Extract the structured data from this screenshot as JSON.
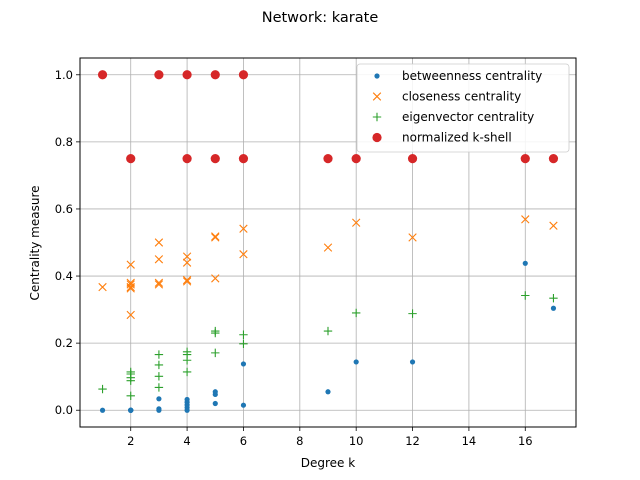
{
  "chart_data": {
    "type": "scatter",
    "title": "Network: karate",
    "xlabel": "Degree k",
    "ylabel": "Centrality measure",
    "xlim": [
      0.2,
      17.8
    ],
    "ylim": [
      -0.05,
      1.05
    ],
    "xticks": [
      2,
      4,
      6,
      8,
      10,
      12,
      14,
      16
    ],
    "xtick_labels": [
      "2",
      "4",
      "6",
      "8",
      "10",
      "12",
      "14",
      "16"
    ],
    "yticks": [
      0.0,
      0.2,
      0.4,
      0.6,
      0.8,
      1.0
    ],
    "ytick_labels": [
      "0.0",
      "0.2",
      "0.4",
      "0.6",
      "0.8",
      "1.0"
    ],
    "grid": true,
    "legend_position": "top-right",
    "series": [
      {
        "name": "betweenness centrality",
        "marker": "dot",
        "color": "#1f77b4",
        "points": [
          [
            1,
            0.0
          ],
          [
            2,
            0.0
          ],
          [
            2,
            0.0
          ],
          [
            2,
            0.0
          ],
          [
            2,
            0.0
          ],
          [
            2,
            0.0
          ],
          [
            3,
            0.0
          ],
          [
            3,
            0.004
          ],
          [
            3,
            0.034
          ],
          [
            4,
            0.0
          ],
          [
            4,
            0.008
          ],
          [
            4,
            0.016
          ],
          [
            4,
            0.024
          ],
          [
            4,
            0.032
          ],
          [
            5,
            0.02
          ],
          [
            5,
            0.047
          ],
          [
            5,
            0.055
          ],
          [
            6,
            0.015
          ],
          [
            6,
            0.138
          ],
          [
            9,
            0.055
          ],
          [
            10,
            0.144
          ],
          [
            12,
            0.144
          ],
          [
            16,
            0.438
          ],
          [
            17,
            0.304
          ]
        ]
      },
      {
        "name": "closeness centrality",
        "marker": "x",
        "color": "#ff7f0e",
        "points": [
          [
            1,
            0.367
          ],
          [
            2,
            0.284
          ],
          [
            2,
            0.363
          ],
          [
            2,
            0.367
          ],
          [
            2,
            0.375
          ],
          [
            2,
            0.38
          ],
          [
            2,
            0.434
          ],
          [
            3,
            0.375
          ],
          [
            3,
            0.38
          ],
          [
            3,
            0.45
          ],
          [
            3,
            0.5
          ],
          [
            4,
            0.384
          ],
          [
            4,
            0.388
          ],
          [
            4,
            0.44
          ],
          [
            4,
            0.458
          ],
          [
            5,
            0.393
          ],
          [
            5,
            0.515
          ],
          [
            5,
            0.518
          ],
          [
            6,
            0.465
          ],
          [
            6,
            0.541
          ],
          [
            9,
            0.485
          ],
          [
            10,
            0.559
          ],
          [
            12,
            0.515
          ],
          [
            16,
            0.569
          ],
          [
            17,
            0.55
          ]
        ]
      },
      {
        "name": "eigenvector centrality",
        "marker": "plus",
        "color": "#2ca02c",
        "points": [
          [
            1,
            0.063
          ],
          [
            2,
            0.043
          ],
          [
            2,
            0.088
          ],
          [
            2,
            0.097
          ],
          [
            2,
            0.108
          ],
          [
            2,
            0.114
          ],
          [
            3,
            0.068
          ],
          [
            3,
            0.101
          ],
          [
            3,
            0.135
          ],
          [
            3,
            0.166
          ],
          [
            4,
            0.114
          ],
          [
            4,
            0.149
          ],
          [
            4,
            0.166
          ],
          [
            4,
            0.174
          ],
          [
            5,
            0.171
          ],
          [
            5,
            0.23
          ],
          [
            5,
            0.236
          ],
          [
            6,
            0.198
          ],
          [
            6,
            0.225
          ],
          [
            9,
            0.236
          ],
          [
            10,
            0.29
          ],
          [
            12,
            0.288
          ],
          [
            16,
            0.342
          ],
          [
            17,
            0.334
          ]
        ]
      },
      {
        "name": "normalized k-shell",
        "marker": "circle",
        "color": "#d62728",
        "points": [
          [
            1,
            1.0
          ],
          [
            2,
            0.75
          ],
          [
            3,
            1.0
          ],
          [
            4,
            1.0
          ],
          [
            5,
            1.0
          ],
          [
            6,
            1.0
          ],
          [
            4,
            0.75
          ],
          [
            5,
            0.75
          ],
          [
            6,
            0.75
          ],
          [
            9,
            0.75
          ],
          [
            10,
            0.75
          ],
          [
            12,
            0.75
          ],
          [
            16,
            0.75
          ],
          [
            17,
            0.75
          ]
        ]
      }
    ]
  }
}
